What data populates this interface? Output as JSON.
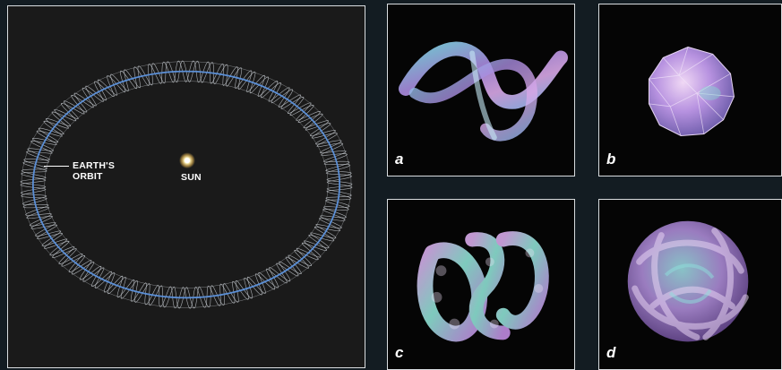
{
  "main": {
    "earth_label_line1": "EARTH'S",
    "earth_label_line2": "ORBIT",
    "sun_label": "SUN"
  },
  "panels": [
    {
      "letter": "a"
    },
    {
      "letter": "b"
    },
    {
      "letter": "c"
    },
    {
      "letter": "d"
    }
  ],
  "colors": {
    "background": "#131c22",
    "orbit": "#5b8fd6",
    "mesh": "#c8ccd2",
    "sun": "#fff6c0"
  }
}
